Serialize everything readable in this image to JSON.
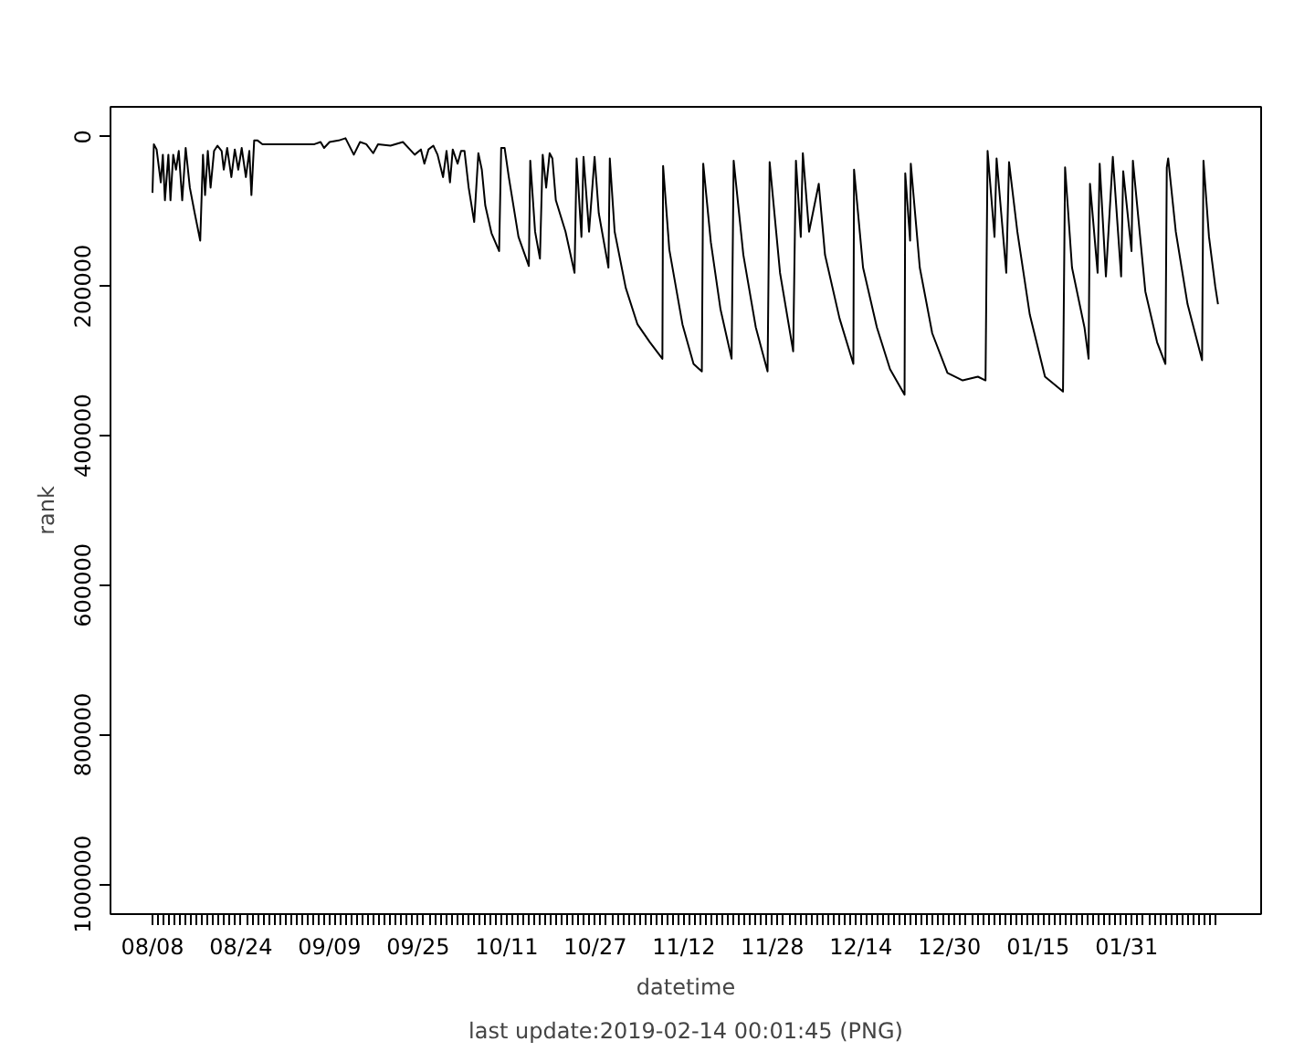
{
  "chart_data": {
    "type": "line",
    "xlabel": "datetime",
    "ylabel": "rank",
    "annotations": [
      "last update:2019-02-14 00:01:45 (PNG)"
    ],
    "x": [
      "2018-08-08T00:00",
      "2018-08-08T06:00",
      "2018-08-08T18:00",
      "2018-08-09T12:00",
      "2018-08-09T21:00",
      "2018-08-10T06:00",
      "2018-08-10T21:00",
      "2018-08-11T06:00",
      "2018-08-11T18:00",
      "2018-08-12T06:00",
      "2018-08-12T18:00",
      "2018-08-13T09:00",
      "2018-08-14T00:00",
      "2018-08-14T18:00",
      "2018-08-15T15:00",
      "2018-08-16T15:00",
      "2018-08-17T03:00",
      "2018-08-17T12:00",
      "2018-08-18T00:00",
      "2018-08-18T12:00",
      "2018-08-19T03:00",
      "2018-08-19T18:00",
      "2018-08-20T12:00",
      "2018-08-20T21:00",
      "2018-08-21T12:00",
      "2018-08-22T06:00",
      "2018-08-22T21:00",
      "2018-08-23T12:00",
      "2018-08-24T03:00",
      "2018-08-24T21:00",
      "2018-08-25T12:00",
      "2018-08-25T21:00",
      "2018-08-26T09:00",
      "2018-08-27T00:00",
      "2018-08-27T21:00",
      "2018-09-06T06:00",
      "2018-09-07T09:00",
      "2018-09-08T00:00",
      "2018-09-09T00:00",
      "2018-09-10T15:00",
      "2018-09-11T21:00",
      "2018-09-13T09:00",
      "2018-09-14T12:00",
      "2018-09-15T15:00",
      "2018-09-16T21:00",
      "2018-09-17T18:00",
      "2018-09-20T00:00",
      "2018-09-22T06:00",
      "2018-09-23T12:00",
      "2018-09-24T09:00",
      "2018-09-25T12:00",
      "2018-09-26T03:00",
      "2018-09-26T21:00",
      "2018-09-27T18:00",
      "2018-09-28T12:00",
      "2018-09-29T12:00",
      "2018-09-30T03:00",
      "2018-09-30T18:00",
      "2018-10-01T06:00",
      "2018-10-02T03:00",
      "2018-10-02T18:00",
      "2018-10-03T09:00",
      "2018-10-04T03:00",
      "2018-10-05T03:00",
      "2018-10-05T21:00",
      "2018-10-06T12:00",
      "2018-10-07T03:00",
      "2018-10-08T06:00",
      "2018-10-09T15:00",
      "2018-10-10T00:00",
      "2018-10-10T15:00",
      "2018-10-11T09:00",
      "2018-10-13T03:00",
      "2018-10-15T00:00",
      "2018-10-15T06:00",
      "2018-10-16T03:00",
      "2018-10-17T00:00",
      "2018-10-17T12:00",
      "2018-10-18T03:00",
      "2018-10-18T18:00",
      "2018-10-19T06:00",
      "2018-10-19T21:00",
      "2018-10-21T15:00",
      "2018-10-23T06:00",
      "2018-10-23T15:00",
      "2018-10-24T12:00",
      "2018-10-24T21:00",
      "2018-10-25T21:00",
      "2018-10-26T21:00",
      "2018-10-27T15:00",
      "2018-10-29T09:00",
      "2018-10-29T15:00",
      "2018-10-30T12:00",
      "2018-11-01T12:00",
      "2018-11-03T15:00",
      "2018-11-05T21:00",
      "2018-11-08T03:00",
      "2018-11-08T06:00",
      "2018-11-09T09:00",
      "2018-11-11T18:00",
      "2018-11-13T18:00",
      "2018-11-15T06:00",
      "2018-11-15T12:00",
      "2018-11-16T21:00",
      "2018-11-18T15:00",
      "2018-11-20T15:00",
      "2018-11-21T00:00",
      "2018-11-22T18:00",
      "2018-11-25T00:00",
      "2018-11-27T03:00",
      "2018-11-27T12:00",
      "2018-11-29T09:00",
      "2018-12-01T18:00",
      "2018-12-02T06:00",
      "2018-12-03T03:00",
      "2018-12-03T12:00",
      "2018-12-04T15:00",
      "2018-12-06T09:00",
      "2018-12-07T12:00",
      "2018-12-10T03:00",
      "2018-12-12T15:00",
      "2018-12-12T18:00",
      "2018-12-14T09:00",
      "2018-12-16T21:00",
      "2018-12-19T06:00",
      "2018-12-21T21:00",
      "2018-12-22T00:00",
      "2018-12-22T21:00",
      "2018-12-23T00:00",
      "2018-12-24T15:00",
      "2018-12-26T21:00",
      "2018-12-29T15:00",
      "2019-01-01T09:00",
      "2019-01-04T03:00",
      "2019-01-05T12:00",
      "2019-01-05T21:00",
      "2019-01-07T03:00",
      "2019-01-07T12:00",
      "2019-01-09T06:00",
      "2019-01-09T18:00",
      "2019-01-11T06:00",
      "2019-01-13T12:00",
      "2019-01-16T06:00",
      "2019-01-19T12:00",
      "2019-01-19T21:00",
      "2019-01-21T03:00",
      "2019-01-23T09:00",
      "2019-01-24T03:00",
      "2019-01-24T09:00",
      "2019-01-25T18:00",
      "2019-01-26T03:00",
      "2019-01-27T06:00",
      "2019-01-28T12:00",
      "2019-01-30T00:00",
      "2019-01-30T09:00",
      "2019-01-31T21:00",
      "2019-02-01T03:00",
      "2019-02-03T09:00",
      "2019-02-05T12:00",
      "2019-02-07T00:00",
      "2019-02-07T06:00",
      "2019-02-07T12:00",
      "2019-02-08T21:00",
      "2019-02-11T00:00",
      "2019-02-13T15:00",
      "2019-02-13T21:00",
      "2019-02-14T21:00",
      "2019-02-16T00:00",
      "2019-02-16T12:00"
    ],
    "series": [
      {
        "color": "#000000",
        "values": [
          75000,
          10000,
          17000,
          61000,
          24000,
          85000,
          24000,
          85000,
          24000,
          44000,
          19000,
          85000,
          15000,
          68000,
          102000,
          139000,
          24000,
          78000,
          19000,
          68000,
          19000,
          12000,
          19000,
          44000,
          15000,
          54000,
          17000,
          44000,
          15000,
          54000,
          19000,
          78000,
          5000,
          5000,
          10000,
          10000,
          7000,
          15000,
          7000,
          5000,
          2000,
          24000,
          7000,
          10000,
          22000,
          10000,
          12000,
          7000,
          17000,
          24000,
          17000,
          36000,
          17000,
          12000,
          24000,
          54000,
          19000,
          61000,
          17000,
          36000,
          19000,
          19000,
          68000,
          114000,
          22000,
          44000,
          92000,
          129000,
          153000,
          15000,
          15000,
          54000,
          134000,
          173000,
          32000,
          127000,
          163000,
          24000,
          68000,
          22000,
          29000,
          85000,
          127000,
          182000,
          29000,
          134000,
          27000,
          127000,
          27000,
          102000,
          175000,
          29000,
          127000,
          202000,
          251000,
          275000,
          297000,
          39000,
          151000,
          251000,
          304000,
          314000,
          36000,
          141000,
          231000,
          297000,
          32000,
          158000,
          255000,
          314000,
          34000,
          182000,
          287000,
          32000,
          134000,
          22000,
          127000,
          63000,
          158000,
          243000,
          304000,
          44000,
          175000,
          255000,
          311000,
          345000,
          49000,
          139000,
          36000,
          175000,
          263000,
          316000,
          326000,
          321000,
          326000,
          19000,
          134000,
          29000,
          182000,
          34000,
          127000,
          238000,
          321000,
          341000,
          41000,
          175000,
          255000,
          297000,
          63000,
          182000,
          36000,
          187000,
          27000,
          187000,
          46000,
          153000,
          32000,
          207000,
          275000,
          304000,
          41000,
          29000,
          127000,
          224000,
          299000,
          32000,
          134000,
          200000,
          224000
        ]
      }
    ],
    "xlim": [
      "2018-07-31T10:00",
      "2019-02-24T07:00"
    ],
    "ylim": [
      1040000,
      -40000
    ],
    "yticks": [
      0,
      200000,
      400000,
      600000,
      800000,
      1000000
    ],
    "xticks": [
      {
        "value": "2018-08-08",
        "label": "08/08"
      },
      {
        "value": "2018-08-09",
        "label": null
      },
      {
        "value": "2018-08-10",
        "label": null
      },
      {
        "value": "2018-08-11",
        "label": null
      },
      {
        "value": "2018-08-12",
        "label": null
      },
      {
        "value": "2018-08-13",
        "label": null
      },
      {
        "value": "2018-08-14",
        "label": null
      },
      {
        "value": "2018-08-15",
        "label": null
      },
      {
        "value": "2018-08-16",
        "label": null
      },
      {
        "value": "2018-08-17",
        "label": null
      },
      {
        "value": "2018-08-18",
        "label": null
      },
      {
        "value": "2018-08-19",
        "label": null
      },
      {
        "value": "2018-08-20",
        "label": null
      },
      {
        "value": "2018-08-21",
        "label": null
      },
      {
        "value": "2018-08-22",
        "label": null
      },
      {
        "value": "2018-08-23",
        "label": null
      },
      {
        "value": "2018-08-24",
        "label": "08/24"
      },
      {
        "value": "2018-08-25",
        "label": null
      },
      {
        "value": "2018-08-26",
        "label": null
      },
      {
        "value": "2018-08-27",
        "label": null
      },
      {
        "value": "2018-08-28",
        "label": null
      },
      {
        "value": "2018-08-29",
        "label": null
      },
      {
        "value": "2018-08-30",
        "label": null
      },
      {
        "value": "2018-08-31",
        "label": null
      },
      {
        "value": "2018-09-01",
        "label": null
      },
      {
        "value": "2018-09-02",
        "label": null
      },
      {
        "value": "2018-09-03",
        "label": null
      },
      {
        "value": "2018-09-04",
        "label": null
      },
      {
        "value": "2018-09-05",
        "label": null
      },
      {
        "value": "2018-09-06",
        "label": null
      },
      {
        "value": "2018-09-07",
        "label": null
      },
      {
        "value": "2018-09-08",
        "label": null
      },
      {
        "value": "2018-09-09",
        "label": "09/09"
      },
      {
        "value": "2018-09-10",
        "label": null
      },
      {
        "value": "2018-09-11",
        "label": null
      },
      {
        "value": "2018-09-12",
        "label": null
      },
      {
        "value": "2018-09-13",
        "label": null
      },
      {
        "value": "2018-09-14",
        "label": null
      },
      {
        "value": "2018-09-15",
        "label": null
      },
      {
        "value": "2018-09-16",
        "label": null
      },
      {
        "value": "2018-09-17",
        "label": null
      },
      {
        "value": "2018-09-18",
        "label": null
      },
      {
        "value": "2018-09-19",
        "label": null
      },
      {
        "value": "2018-09-20",
        "label": null
      },
      {
        "value": "2018-09-21",
        "label": null
      },
      {
        "value": "2018-09-22",
        "label": null
      },
      {
        "value": "2018-09-23",
        "label": null
      },
      {
        "value": "2018-09-24",
        "label": null
      },
      {
        "value": "2018-09-25",
        "label": "09/25"
      },
      {
        "value": "2018-09-26",
        "label": null
      },
      {
        "value": "2018-09-27",
        "label": null
      },
      {
        "value": "2018-09-28",
        "label": null
      },
      {
        "value": "2018-09-29",
        "label": null
      },
      {
        "value": "2018-09-30",
        "label": null
      },
      {
        "value": "2018-10-01",
        "label": null
      },
      {
        "value": "2018-10-02",
        "label": null
      },
      {
        "value": "2018-10-03",
        "label": null
      },
      {
        "value": "2018-10-04",
        "label": null
      },
      {
        "value": "2018-10-05",
        "label": null
      },
      {
        "value": "2018-10-06",
        "label": null
      },
      {
        "value": "2018-10-07",
        "label": null
      },
      {
        "value": "2018-10-08",
        "label": null
      },
      {
        "value": "2018-10-09",
        "label": null
      },
      {
        "value": "2018-10-10",
        "label": null
      },
      {
        "value": "2018-10-11",
        "label": "10/11"
      },
      {
        "value": "2018-10-12",
        "label": null
      },
      {
        "value": "2018-10-13",
        "label": null
      },
      {
        "value": "2018-10-14",
        "label": null
      },
      {
        "value": "2018-10-15",
        "label": null
      },
      {
        "value": "2018-10-16",
        "label": null
      },
      {
        "value": "2018-10-17",
        "label": null
      },
      {
        "value": "2018-10-18",
        "label": null
      },
      {
        "value": "2018-10-19",
        "label": null
      },
      {
        "value": "2018-10-20",
        "label": null
      },
      {
        "value": "2018-10-21",
        "label": null
      },
      {
        "value": "2018-10-22",
        "label": null
      },
      {
        "value": "2018-10-23",
        "label": null
      },
      {
        "value": "2018-10-24",
        "label": null
      },
      {
        "value": "2018-10-25",
        "label": null
      },
      {
        "value": "2018-10-26",
        "label": null
      },
      {
        "value": "2018-10-27",
        "label": "10/27"
      },
      {
        "value": "2018-10-28",
        "label": null
      },
      {
        "value": "2018-10-29",
        "label": null
      },
      {
        "value": "2018-10-30",
        "label": null
      },
      {
        "value": "2018-10-31",
        "label": null
      },
      {
        "value": "2018-11-01",
        "label": null
      },
      {
        "value": "2018-11-02",
        "label": null
      },
      {
        "value": "2018-11-03",
        "label": null
      },
      {
        "value": "2018-11-04",
        "label": null
      },
      {
        "value": "2018-11-05",
        "label": null
      },
      {
        "value": "2018-11-06",
        "label": null
      },
      {
        "value": "2018-11-07",
        "label": null
      },
      {
        "value": "2018-11-08",
        "label": null
      },
      {
        "value": "2018-11-09",
        "label": null
      },
      {
        "value": "2018-11-10",
        "label": null
      },
      {
        "value": "2018-11-11",
        "label": null
      },
      {
        "value": "2018-11-12",
        "label": "11/12"
      },
      {
        "value": "2018-11-13",
        "label": null
      },
      {
        "value": "2018-11-14",
        "label": null
      },
      {
        "value": "2018-11-15",
        "label": null
      },
      {
        "value": "2018-11-16",
        "label": null
      },
      {
        "value": "2018-11-17",
        "label": null
      },
      {
        "value": "2018-11-18",
        "label": null
      },
      {
        "value": "2018-11-19",
        "label": null
      },
      {
        "value": "2018-11-20",
        "label": null
      },
      {
        "value": "2018-11-21",
        "label": null
      },
      {
        "value": "2018-11-22",
        "label": null
      },
      {
        "value": "2018-11-23",
        "label": null
      },
      {
        "value": "2018-11-24",
        "label": null
      },
      {
        "value": "2018-11-25",
        "label": null
      },
      {
        "value": "2018-11-26",
        "label": null
      },
      {
        "value": "2018-11-27",
        "label": null
      },
      {
        "value": "2018-11-28",
        "label": "11/28"
      },
      {
        "value": "2018-11-29",
        "label": null
      },
      {
        "value": "2018-11-30",
        "label": null
      },
      {
        "value": "2018-12-01",
        "label": null
      },
      {
        "value": "2018-12-02",
        "label": null
      },
      {
        "value": "2018-12-03",
        "label": null
      },
      {
        "value": "2018-12-04",
        "label": null
      },
      {
        "value": "2018-12-05",
        "label": null
      },
      {
        "value": "2018-12-06",
        "label": null
      },
      {
        "value": "2018-12-07",
        "label": null
      },
      {
        "value": "2018-12-08",
        "label": null
      },
      {
        "value": "2018-12-09",
        "label": null
      },
      {
        "value": "2018-12-10",
        "label": null
      },
      {
        "value": "2018-12-11",
        "label": null
      },
      {
        "value": "2018-12-12",
        "label": null
      },
      {
        "value": "2018-12-13",
        "label": null
      },
      {
        "value": "2018-12-14",
        "label": "12/14"
      },
      {
        "value": "2018-12-15",
        "label": null
      },
      {
        "value": "2018-12-16",
        "label": null
      },
      {
        "value": "2018-12-17",
        "label": null
      },
      {
        "value": "2018-12-18",
        "label": null
      },
      {
        "value": "2018-12-19",
        "label": null
      },
      {
        "value": "2018-12-20",
        "label": null
      },
      {
        "value": "2018-12-21",
        "label": null
      },
      {
        "value": "2018-12-22",
        "label": null
      },
      {
        "value": "2018-12-23",
        "label": null
      },
      {
        "value": "2018-12-24",
        "label": null
      },
      {
        "value": "2018-12-25",
        "label": null
      },
      {
        "value": "2018-12-26",
        "label": null
      },
      {
        "value": "2018-12-27",
        "label": null
      },
      {
        "value": "2018-12-28",
        "label": null
      },
      {
        "value": "2018-12-29",
        "label": null
      },
      {
        "value": "2018-12-30",
        "label": "12/30"
      },
      {
        "value": "2018-12-31",
        "label": null
      },
      {
        "value": "2019-01-01",
        "label": null
      },
      {
        "value": "2019-01-02",
        "label": null
      },
      {
        "value": "2019-01-03",
        "label": null
      },
      {
        "value": "2019-01-04",
        "label": null
      },
      {
        "value": "2019-01-05",
        "label": null
      },
      {
        "value": "2019-01-06",
        "label": null
      },
      {
        "value": "2019-01-07",
        "label": null
      },
      {
        "value": "2019-01-08",
        "label": null
      },
      {
        "value": "2019-01-09",
        "label": null
      },
      {
        "value": "2019-01-10",
        "label": null
      },
      {
        "value": "2019-01-11",
        "label": null
      },
      {
        "value": "2019-01-12",
        "label": null
      },
      {
        "value": "2019-01-13",
        "label": null
      },
      {
        "value": "2019-01-14",
        "label": null
      },
      {
        "value": "2019-01-15",
        "label": "01/15"
      },
      {
        "value": "2019-01-16",
        "label": null
      },
      {
        "value": "2019-01-17",
        "label": null
      },
      {
        "value": "2019-01-18",
        "label": null
      },
      {
        "value": "2019-01-19",
        "label": null
      },
      {
        "value": "2019-01-20",
        "label": null
      },
      {
        "value": "2019-01-21",
        "label": null
      },
      {
        "value": "2019-01-22",
        "label": null
      },
      {
        "value": "2019-01-23",
        "label": null
      },
      {
        "value": "2019-01-24",
        "label": null
      },
      {
        "value": "2019-01-25",
        "label": null
      },
      {
        "value": "2019-01-26",
        "label": null
      },
      {
        "value": "2019-01-27",
        "label": null
      },
      {
        "value": "2019-01-28",
        "label": null
      },
      {
        "value": "2019-01-29",
        "label": null
      },
      {
        "value": "2019-01-30",
        "label": null
      },
      {
        "value": "2019-01-31",
        "label": "01/31"
      },
      {
        "value": "2019-02-01",
        "label": null
      },
      {
        "value": "2019-02-02",
        "label": null
      },
      {
        "value": "2019-02-03",
        "label": null
      },
      {
        "value": "2019-02-04",
        "label": null
      },
      {
        "value": "2019-02-05",
        "label": null
      },
      {
        "value": "2019-02-06",
        "label": null
      },
      {
        "value": "2019-02-07",
        "label": null
      },
      {
        "value": "2019-02-08",
        "label": null
      },
      {
        "value": "2019-02-09",
        "label": null
      },
      {
        "value": "2019-02-10",
        "label": null
      },
      {
        "value": "2019-02-11",
        "label": null
      },
      {
        "value": "2019-02-12",
        "label": null
      },
      {
        "value": "2019-02-13",
        "label": null
      },
      {
        "value": "2019-02-14",
        "label": null
      },
      {
        "value": "2019-02-15",
        "label": null
      },
      {
        "value": "2019-02-16",
        "label": null
      }
    ]
  }
}
